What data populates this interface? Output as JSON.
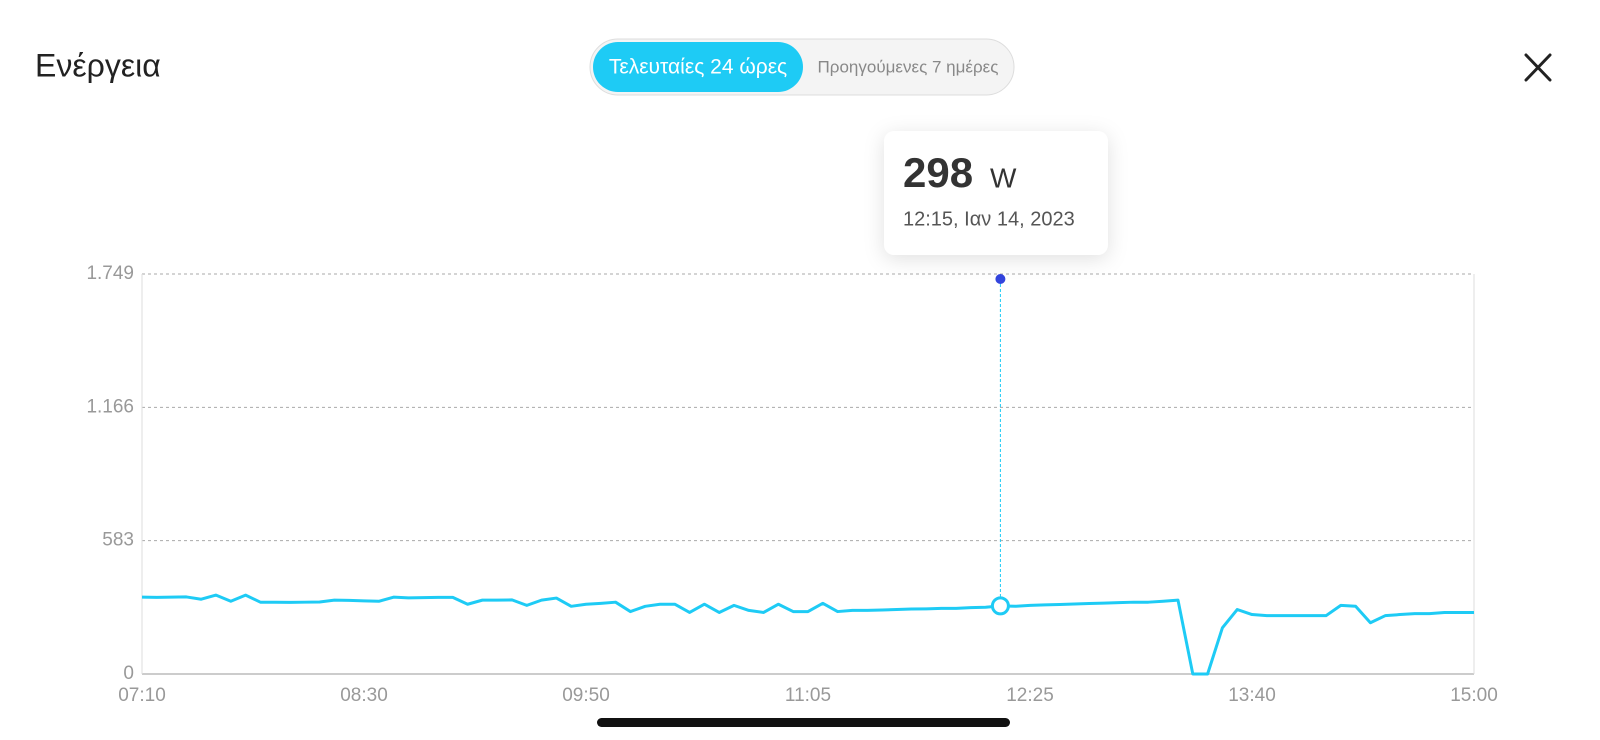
{
  "header": {
    "title": "Ενέργεια",
    "tabs": [
      "Τελευταίες 24 ώρες",
      "Προηγούμενες 7 ημέρες"
    ]
  },
  "chart_data": {
    "type": "line",
    "color": "#1ecbf5",
    "values": [
      336,
      335,
      336,
      337,
      327,
      345,
      318,
      345,
      314,
      314,
      313,
      314,
      315,
      323,
      322,
      320,
      318,
      336,
      333,
      334,
      335,
      335,
      305,
      323,
      323,
      324,
      300,
      323,
      332,
      296,
      305,
      309,
      314,
      273,
      296,
      305,
      305,
      269,
      305,
      269,
      300,
      278,
      269,
      305,
      273,
      273,
      309,
      273,
      278,
      278,
      280,
      282,
      284,
      285,
      287,
      287,
      290,
      292,
      298,
      296,
      300,
      302,
      304,
      306,
      308,
      310,
      312,
      314,
      314,
      318,
      323,
      0,
      0,
      202,
      282,
      260,
      255,
      255,
      255,
      255,
      255,
      300,
      296,
      224,
      255,
      260,
      264,
      264,
      269,
      269,
      269
    ],
    "xlim": [
      0,
      90
    ],
    "xticks": [
      {
        "value": 0,
        "label": "07:10"
      },
      {
        "value": 15,
        "label": "08:30"
      },
      {
        "value": 30,
        "label": "09:50"
      },
      {
        "value": 45,
        "label": "11:05"
      },
      {
        "value": 60,
        "label": "12:25"
      },
      {
        "value": 75,
        "label": "13:40"
      },
      {
        "value": 90,
        "label": "15:00"
      }
    ],
    "ylim": [
      0,
      1749
    ],
    "yticks": [
      0,
      583,
      {
        "value": 1166,
        "label": "1.166"
      },
      {
        "value": 1749,
        "label": "1.749"
      }
    ],
    "grid": true
  },
  "tooltip": {
    "unit": "W",
    "time": "12:15, Ιαν 14, 2023"
  }
}
